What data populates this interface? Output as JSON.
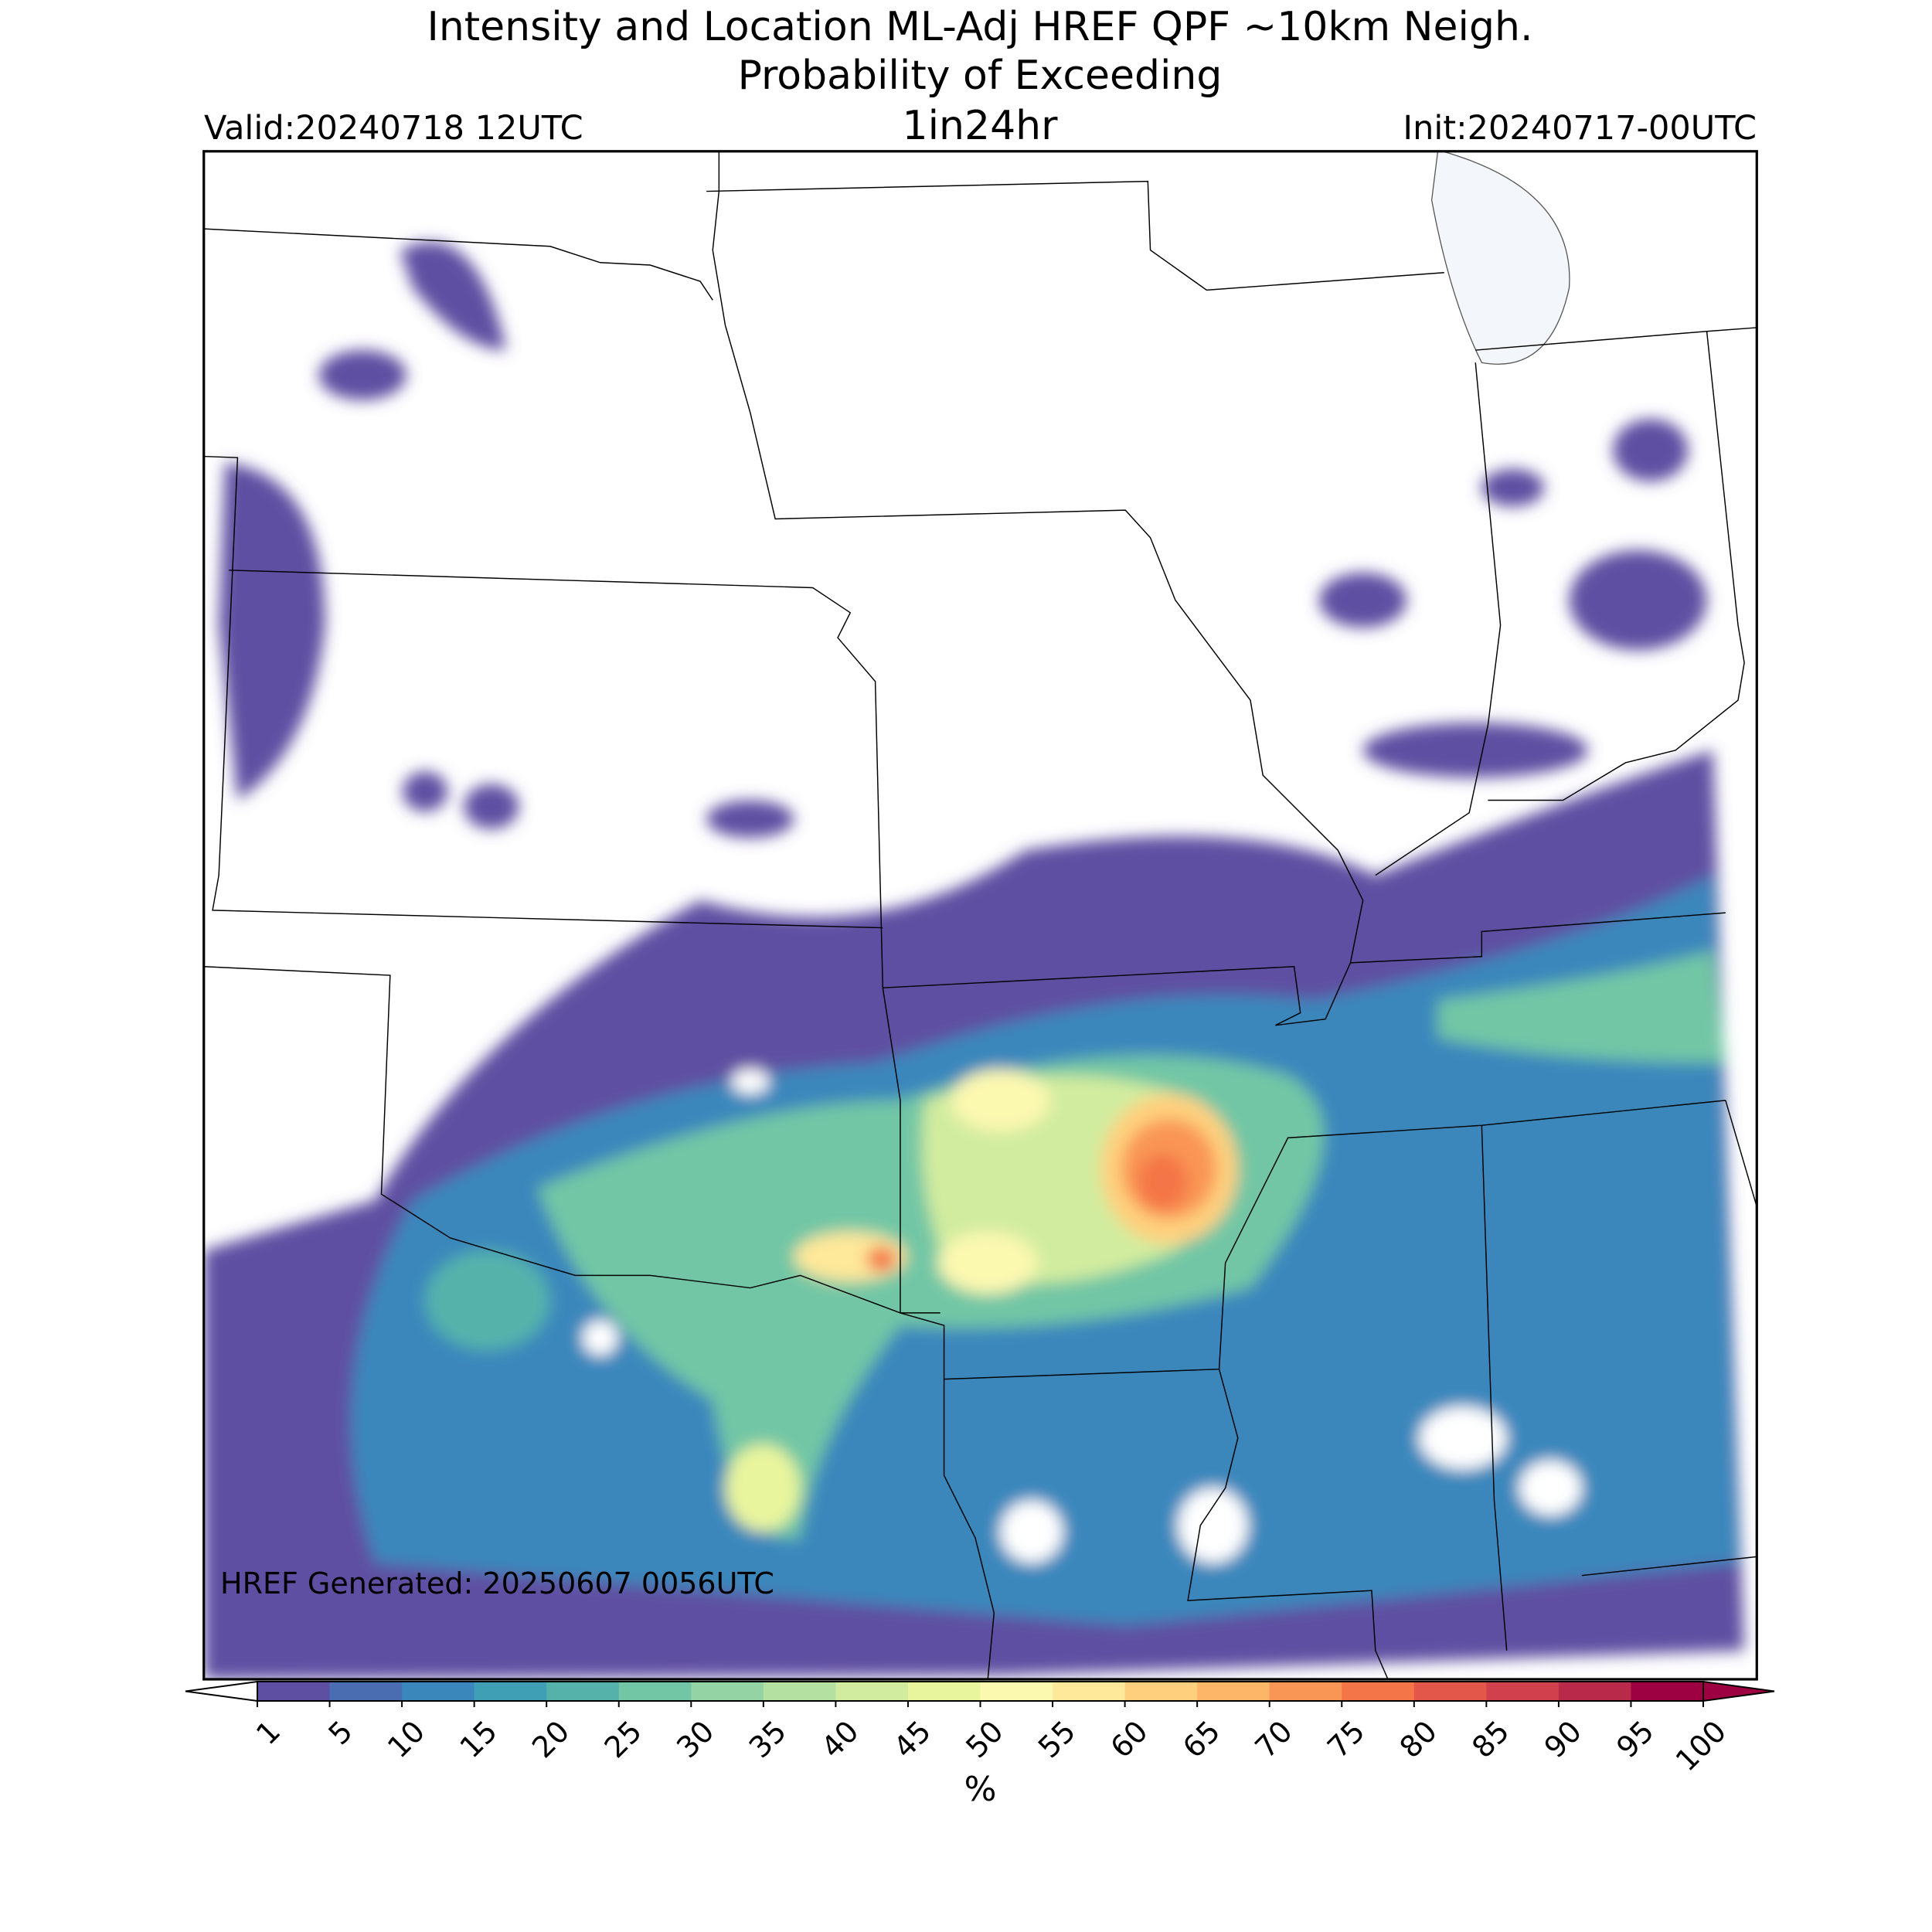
{
  "header": {
    "title_line1": "Intensity and Location ML-Adj HREF QPF ~10km Neigh.",
    "title_line2": "Probability of Exceeding",
    "threshold": "1in24hr",
    "valid": "Valid:20240718 12UTC",
    "init": "Init:20240717-00UTC"
  },
  "map": {
    "footer": "HREF Generated: 20250607 0056UTC"
  },
  "colorbar": {
    "label": "%",
    "ticks": [
      1,
      5,
      10,
      15,
      20,
      25,
      30,
      35,
      40,
      45,
      50,
      55,
      60,
      65,
      70,
      75,
      80,
      85,
      90,
      95,
      100
    ],
    "colors": [
      "#5e4fa2",
      "#4a6cb0",
      "#3a87bc",
      "#3f9fb5",
      "#55b2ab",
      "#72c6a5",
      "#94d4a4",
      "#b4e0a2",
      "#d1ec9f",
      "#e9f59d",
      "#fbf8b0",
      "#fee89a",
      "#fed07e",
      "#fdb567",
      "#f99555",
      "#f47547",
      "#e3574a",
      "#d0414d",
      "#b9294a",
      "#9e0142"
    ],
    "under_color": "#ffffff",
    "over_color": "#9e0142"
  }
}
